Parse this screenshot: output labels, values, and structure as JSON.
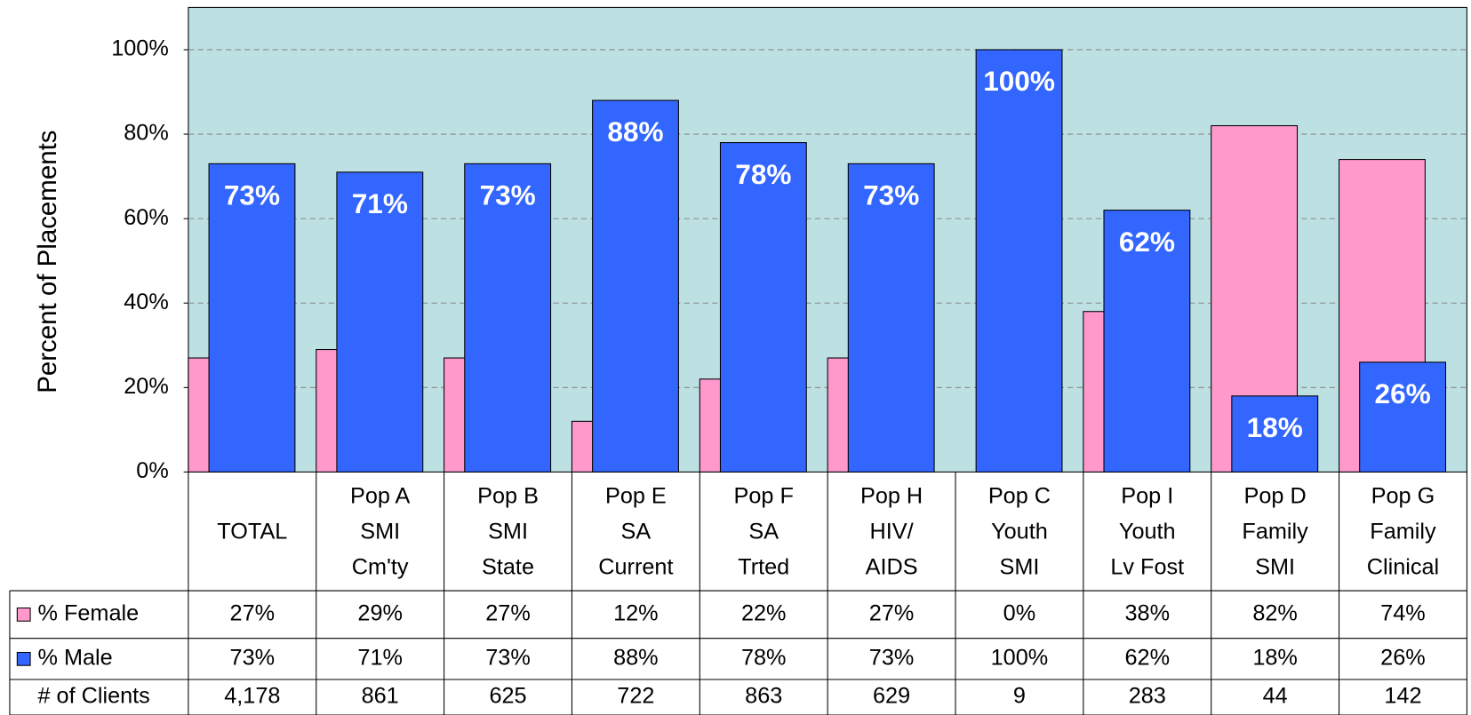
{
  "chart_data": {
    "type": "bar",
    "ylabel": "Percent of Placements",
    "categories": [
      [
        "TOTAL"
      ],
      [
        "Pop A",
        "SMI",
        "Cm'ty"
      ],
      [
        "Pop B",
        "SMI",
        "State"
      ],
      [
        "Pop E",
        "SA",
        "Current"
      ],
      [
        "Pop F",
        "SA",
        "Trted"
      ],
      [
        "Pop H",
        "HIV/",
        "AIDS"
      ],
      [
        "Pop C",
        "Youth",
        "SMI"
      ],
      [
        "Pop I",
        "Youth",
        "Lv Fost"
      ],
      [
        "Pop D",
        "Family",
        "SMI"
      ],
      [
        "Pop G",
        "Family",
        "Clinical"
      ]
    ],
    "series": [
      {
        "name": "% Female",
        "color": "#ff99cc",
        "values": [
          27,
          29,
          27,
          12,
          22,
          27,
          0,
          38,
          82,
          74
        ],
        "value_labels": [
          "27%",
          "29%",
          "27%",
          "12%",
          "22%",
          "27%",
          "0%",
          "38%",
          "82%",
          "74%"
        ]
      },
      {
        "name": "% Male",
        "color": "#3366ff",
        "values": [
          73,
          71,
          73,
          88,
          78,
          73,
          100,
          62,
          18,
          26
        ],
        "value_labels": [
          "73%",
          "71%",
          "73%",
          "88%",
          "78%",
          "73%",
          "100%",
          "62%",
          "18%",
          "26%"
        ]
      }
    ],
    "clients": {
      "name": "# of Clients",
      "values": [
        "4,178",
        "861",
        "625",
        "722",
        "863",
        "629",
        "9",
        "283",
        "44",
        "142"
      ]
    },
    "ylim": [
      0,
      110
    ],
    "yticks": [
      {
        "value": 0,
        "label": "0%"
      },
      {
        "value": 20,
        "label": "20%"
      },
      {
        "value": 40,
        "label": "40%"
      },
      {
        "value": 60,
        "label": "60%"
      },
      {
        "value": 80,
        "label": "80%"
      },
      {
        "value": 100,
        "label": "100%"
      }
    ],
    "grid": true,
    "plot_background": "#bde0e3"
  }
}
